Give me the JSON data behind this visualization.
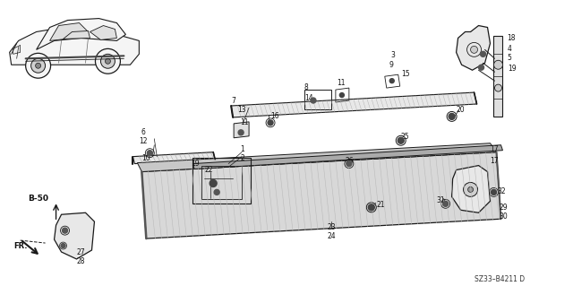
{
  "bg_color": "#ffffff",
  "line_color": "#1a1a1a",
  "fig_width": 6.4,
  "fig_height": 3.19,
  "dpi": 100,
  "diagram_code": "SZ33–B4211 D"
}
